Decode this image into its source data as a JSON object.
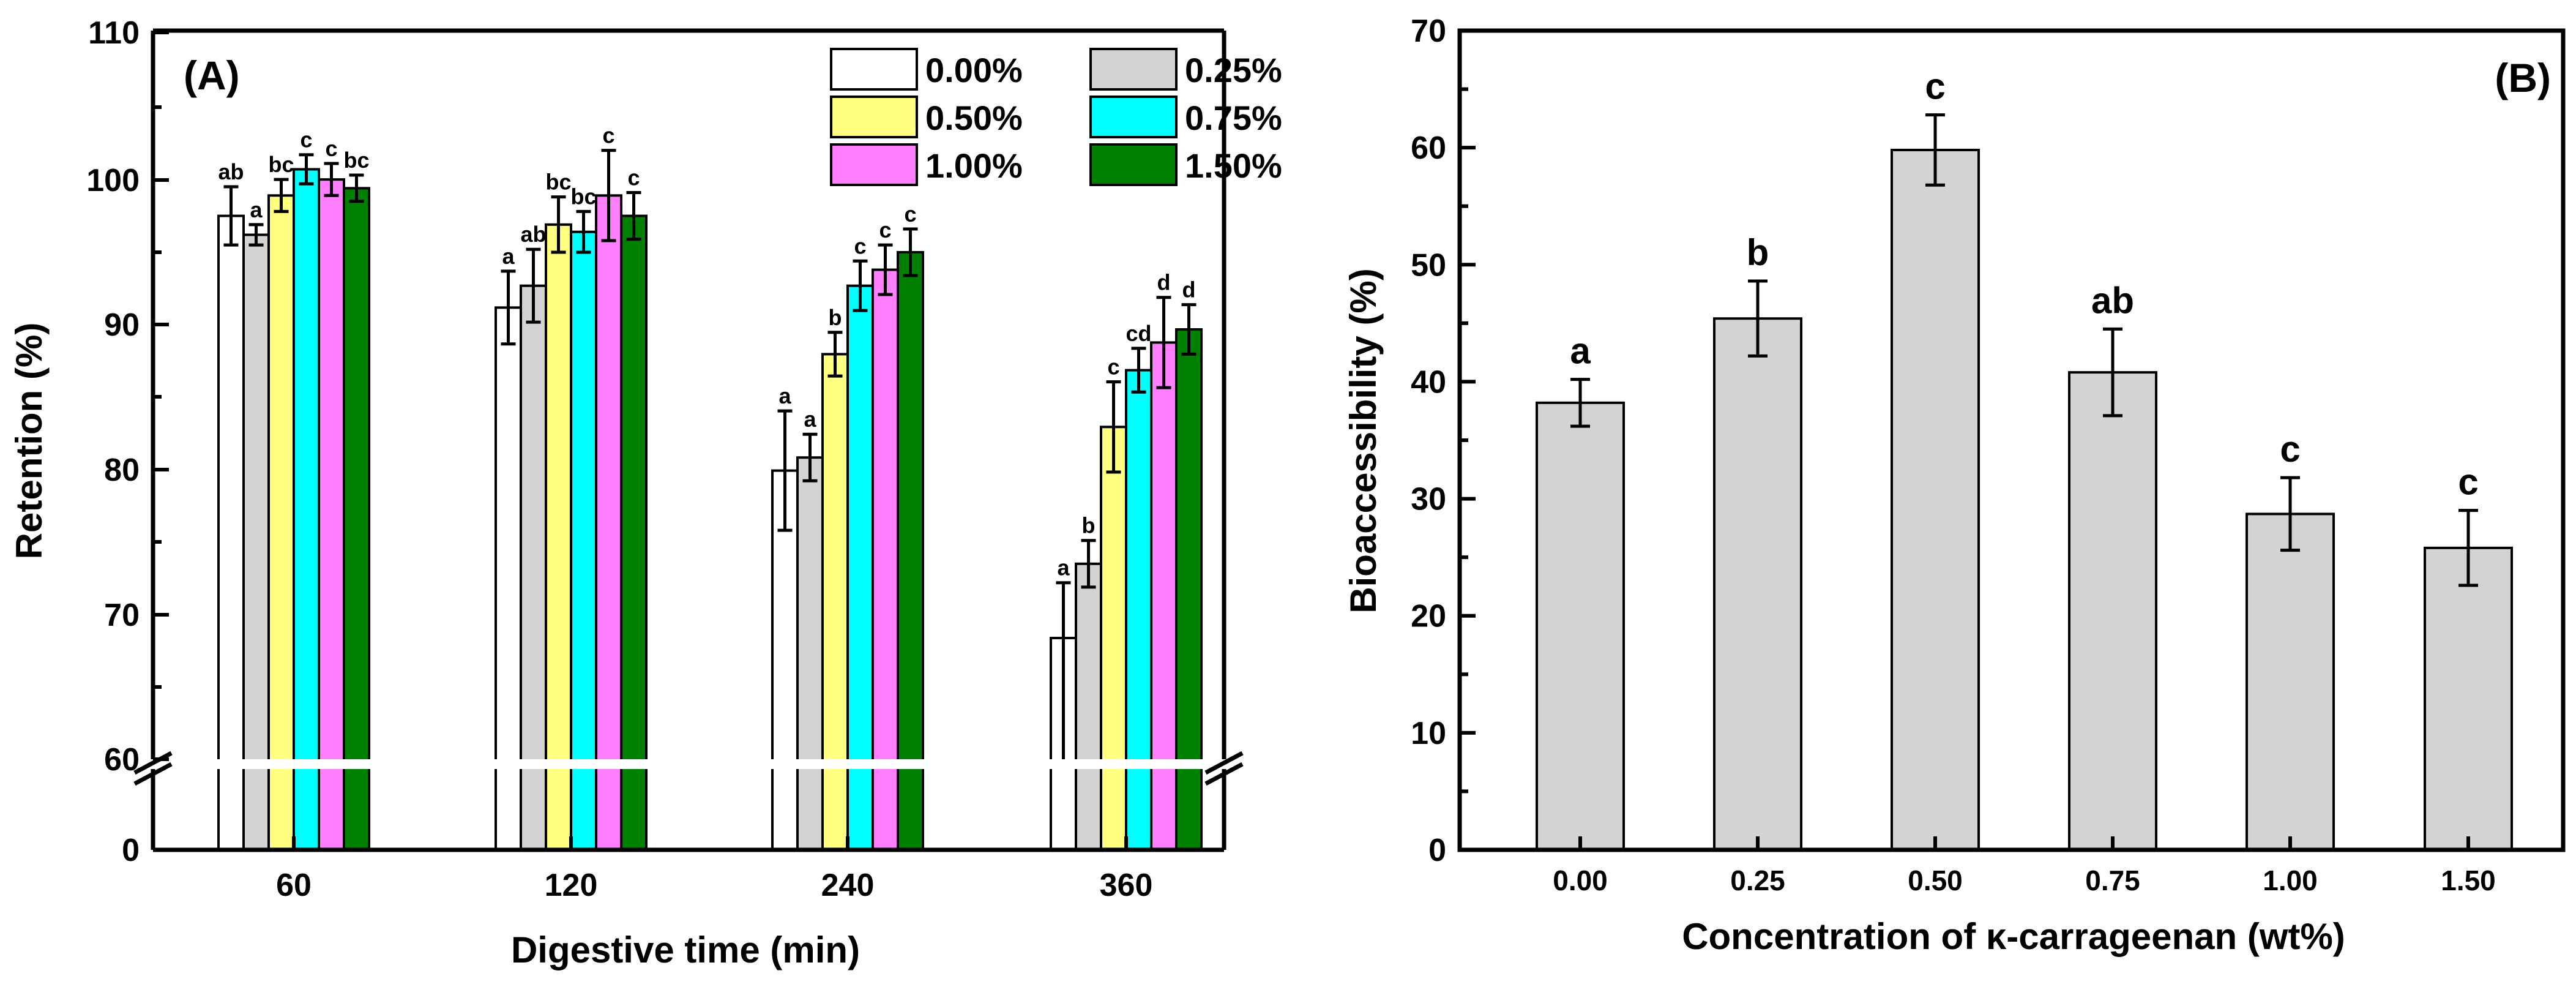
{
  "chart_data": [
    {
      "panel_label": "(A)",
      "type": "bar",
      "xlabel": "Digestive time (min)",
      "ylabel": "Retention (%)",
      "categories": [
        "60",
        "120",
        "240",
        "360"
      ],
      "ylim": [
        0,
        110
      ],
      "axis_break": [
        60,
        67
      ],
      "yticks": [
        0,
        60,
        70,
        80,
        90,
        100,
        110
      ],
      "ytick_labels": [
        "0",
        "60",
        "70",
        "80",
        "90",
        "100",
        "110"
      ],
      "legend_position": "top-right",
      "series": [
        {
          "name": "0.00%",
          "color": "#ffffff",
          "values": [
            97.4,
            91.1,
            79.9,
            68.4
          ],
          "errors": [
            2.0,
            2.5,
            4.1,
            3.8
          ],
          "letters": [
            "ab",
            "a",
            "a",
            "a"
          ]
        },
        {
          "name": "0.25%",
          "color": "#d3d3d3",
          "values": [
            96.1,
            92.6,
            80.8,
            73.5
          ],
          "errors": [
            0.7,
            2.5,
            1.6,
            1.6
          ],
          "letters": [
            "a",
            "ab",
            "a",
            "b"
          ]
        },
        {
          "name": "0.50%",
          "color": "#ffff80",
          "values": [
            98.8,
            96.8,
            87.9,
            82.9
          ],
          "errors": [
            1.1,
            1.9,
            1.5,
            3.1
          ],
          "letters": [
            "bc",
            "bc",
            "b",
            "c"
          ]
        },
        {
          "name": "0.75%",
          "color": "#00ffff",
          "values": [
            100.6,
            96.3,
            92.6,
            86.8
          ],
          "errors": [
            1.0,
            1.4,
            1.7,
            1.5
          ],
          "letters": [
            "c",
            "bc",
            "c",
            "cd"
          ]
        },
        {
          "name": "1.00%",
          "color": "#ff80ff",
          "values": [
            99.9,
            98.8,
            93.7,
            88.7
          ],
          "errors": [
            1.1,
            3.1,
            1.7,
            3.1
          ],
          "letters": [
            "c",
            "c",
            "c",
            "d"
          ]
        },
        {
          "name": "1.50%",
          "color": "#008000",
          "values": [
            99.3,
            97.4,
            94.9,
            89.6
          ],
          "errors": [
            0.9,
            1.6,
            1.6,
            1.7
          ],
          "letters": [
            "bc",
            "c",
            "c",
            "d"
          ]
        }
      ]
    },
    {
      "panel_label": "(B)",
      "type": "bar",
      "xlabel": "Concentration of κ-carrageenan (wt%)",
      "ylabel": "Bioaccessibility (%)",
      "categories": [
        "0.00",
        "0.25",
        "0.50",
        "0.75",
        "1.00",
        "1.50"
      ],
      "ylim": [
        0,
        70
      ],
      "yticks": [
        0,
        10,
        20,
        30,
        40,
        50,
        60,
        70
      ],
      "ytick_labels": [
        "0",
        "10",
        "20",
        "30",
        "40",
        "50",
        "60",
        "70"
      ],
      "series": [
        {
          "name": "Bioaccessibility",
          "color": "#d3d3d3",
          "values": [
            38.2,
            45.4,
            59.8,
            40.8,
            28.7,
            25.8
          ],
          "errors": [
            2.0,
            3.2,
            3.0,
            3.7,
            3.1,
            3.2
          ],
          "letters": [
            "a",
            "b",
            "c",
            "ab",
            "c",
            "c"
          ]
        }
      ]
    }
  ]
}
